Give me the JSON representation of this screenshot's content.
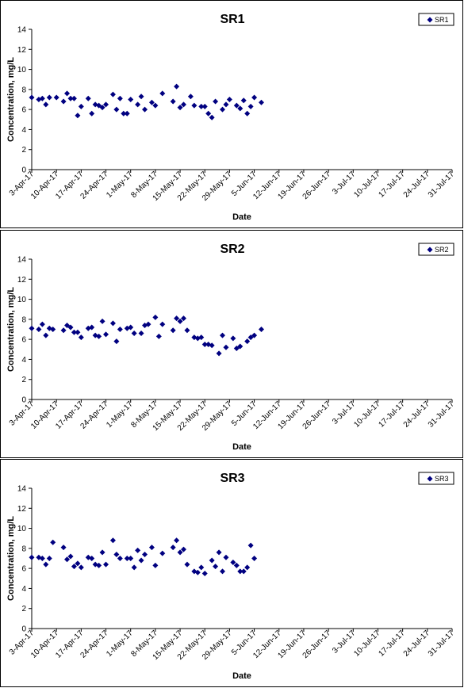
{
  "chart_data": [
    {
      "type": "scatter",
      "title": "SR1",
      "xlabel": "Date",
      "ylabel": "Concentration, mg/L",
      "ylim": [
        0,
        14
      ],
      "yticks": [
        "0",
        "2",
        "4",
        "6",
        "8",
        "10",
        "12",
        "14"
      ],
      "xlim": [
        "2017-04-03",
        "2017-07-31"
      ],
      "xticks": [
        "3-Apr-17",
        "10-Apr-17",
        "17-Apr-17",
        "24-Apr-17",
        "1-May-17",
        "8-May-17",
        "15-May-17",
        "22-May-17",
        "29-May-17",
        "5-Jun-17",
        "12-Jun-17",
        "19-Jun-17",
        "26-Jun-17",
        "3-Jul-17",
        "10-Jul-17",
        "17-Jul-17",
        "24-Jul-17",
        "31-Jul-17"
      ],
      "grid": false,
      "legend_position": "top-right",
      "series": [
        {
          "name": "SR1",
          "color": "#000080",
          "marker": "diamond",
          "points": [
            [
              "2017-04-03",
              7.2
            ],
            [
              "2017-04-05",
              7.0
            ],
            [
              "2017-04-06",
              7.1
            ],
            [
              "2017-04-07",
              6.5
            ],
            [
              "2017-04-08",
              7.2
            ],
            [
              "2017-04-10",
              7.2
            ],
            [
              "2017-04-12",
              6.8
            ],
            [
              "2017-04-13",
              7.6
            ],
            [
              "2017-04-14",
              7.1
            ],
            [
              "2017-04-15",
              7.1
            ],
            [
              "2017-04-16",
              5.4
            ],
            [
              "2017-04-17",
              6.3
            ],
            [
              "2017-04-19",
              7.1
            ],
            [
              "2017-04-20",
              5.6
            ],
            [
              "2017-04-21",
              6.5
            ],
            [
              "2017-04-22",
              6.4
            ],
            [
              "2017-04-23",
              6.2
            ],
            [
              "2017-04-24",
              6.5
            ],
            [
              "2017-04-26",
              7.5
            ],
            [
              "2017-04-27",
              6.0
            ],
            [
              "2017-04-28",
              7.1
            ],
            [
              "2017-04-29",
              5.6
            ],
            [
              "2017-04-30",
              5.6
            ],
            [
              "2017-05-01",
              7.0
            ],
            [
              "2017-05-03",
              6.5
            ],
            [
              "2017-05-04",
              7.3
            ],
            [
              "2017-05-05",
              6.0
            ],
            [
              "2017-05-07",
              6.7
            ],
            [
              "2017-05-08",
              6.4
            ],
            [
              "2017-05-10",
              7.6
            ],
            [
              "2017-05-13",
              6.8
            ],
            [
              "2017-05-14",
              8.3
            ],
            [
              "2017-05-15",
              6.2
            ],
            [
              "2017-05-16",
              6.5
            ],
            [
              "2017-05-18",
              7.3
            ],
            [
              "2017-05-19",
              6.4
            ],
            [
              "2017-05-21",
              6.3
            ],
            [
              "2017-05-22",
              6.3
            ],
            [
              "2017-05-23",
              5.6
            ],
            [
              "2017-05-24",
              5.2
            ],
            [
              "2017-05-25",
              6.8
            ],
            [
              "2017-05-27",
              6.0
            ],
            [
              "2017-05-28",
              6.5
            ],
            [
              "2017-05-29",
              7.0
            ],
            [
              "2017-05-31",
              6.4
            ],
            [
              "2017-06-01",
              6.1
            ],
            [
              "2017-06-02",
              6.9
            ],
            [
              "2017-06-03",
              5.6
            ],
            [
              "2017-06-04",
              6.3
            ],
            [
              "2017-06-05",
              7.2
            ],
            [
              "2017-06-07",
              6.7
            ]
          ]
        }
      ]
    },
    {
      "type": "scatter",
      "title": "SR2",
      "xlabel": "Date",
      "ylabel": "Concentration, mg/L",
      "ylim": [
        0,
        14
      ],
      "yticks": [
        "0",
        "2",
        "4",
        "6",
        "8",
        "10",
        "12",
        "14"
      ],
      "xlim": [
        "2017-04-03",
        "2017-07-31"
      ],
      "xticks": [
        "3-Apr-17",
        "10-Apr-17",
        "17-Apr-17",
        "24-Apr-17",
        "1-May-17",
        "8-May-17",
        "15-May-17",
        "22-May-17",
        "29-May-17",
        "5-Jun-17",
        "12-Jun-17",
        "19-Jun-17",
        "26-Jun-17",
        "3-Jul-17",
        "10-Jul-17",
        "17-Jul-17",
        "24-Jul-17",
        "31-Jul-17"
      ],
      "grid": false,
      "legend_position": "top-right",
      "series": [
        {
          "name": "SR2",
          "color": "#000080",
          "marker": "diamond",
          "points": [
            [
              "2017-04-03",
              7.1
            ],
            [
              "2017-04-05",
              7.0
            ],
            [
              "2017-04-06",
              7.5
            ],
            [
              "2017-04-07",
              6.4
            ],
            [
              "2017-04-08",
              7.1
            ],
            [
              "2017-04-09",
              7.0
            ],
            [
              "2017-04-12",
              6.9
            ],
            [
              "2017-04-13",
              7.4
            ],
            [
              "2017-04-14",
              7.2
            ],
            [
              "2017-04-15",
              6.7
            ],
            [
              "2017-04-16",
              6.7
            ],
            [
              "2017-04-17",
              6.2
            ],
            [
              "2017-04-19",
              7.1
            ],
            [
              "2017-04-20",
              7.2
            ],
            [
              "2017-04-21",
              6.4
            ],
            [
              "2017-04-22",
              6.3
            ],
            [
              "2017-04-23",
              7.8
            ],
            [
              "2017-04-24",
              6.5
            ],
            [
              "2017-04-26",
              7.6
            ],
            [
              "2017-04-27",
              5.8
            ],
            [
              "2017-04-28",
              7.0
            ],
            [
              "2017-04-30",
              7.1
            ],
            [
              "2017-05-01",
              7.2
            ],
            [
              "2017-05-02",
              6.6
            ],
            [
              "2017-05-04",
              6.6
            ],
            [
              "2017-05-05",
              7.4
            ],
            [
              "2017-05-06",
              7.5
            ],
            [
              "2017-05-08",
              8.2
            ],
            [
              "2017-05-09",
              6.3
            ],
            [
              "2017-05-10",
              7.5
            ],
            [
              "2017-05-13",
              6.9
            ],
            [
              "2017-05-14",
              8.1
            ],
            [
              "2017-05-15",
              7.8
            ],
            [
              "2017-05-16",
              8.1
            ],
            [
              "2017-05-17",
              6.9
            ],
            [
              "2017-05-19",
              6.2
            ],
            [
              "2017-05-20",
              6.1
            ],
            [
              "2017-05-21",
              6.2
            ],
            [
              "2017-05-22",
              5.5
            ],
            [
              "2017-05-23",
              5.5
            ],
            [
              "2017-05-24",
              5.4
            ],
            [
              "2017-05-26",
              4.6
            ],
            [
              "2017-05-27",
              6.4
            ],
            [
              "2017-05-28",
              5.2
            ],
            [
              "2017-05-30",
              6.1
            ],
            [
              "2017-05-31",
              5.1
            ],
            [
              "2017-06-01",
              5.3
            ],
            [
              "2017-06-03",
              5.8
            ],
            [
              "2017-06-04",
              6.2
            ],
            [
              "2017-06-05",
              6.4
            ],
            [
              "2017-06-07",
              7.0
            ]
          ]
        }
      ]
    },
    {
      "type": "scatter",
      "title": "SR3",
      "xlabel": "Date",
      "ylabel": "Concentration, mg/L",
      "ylim": [
        0,
        14
      ],
      "yticks": [
        "0",
        "2",
        "4",
        "6",
        "8",
        "10",
        "12",
        "14"
      ],
      "xlim": [
        "2017-04-03",
        "2017-07-31"
      ],
      "xticks": [
        "3-Apr-17",
        "10-Apr-17",
        "17-Apr-17",
        "24-Apr-17",
        "1-May-17",
        "8-May-17",
        "15-May-17",
        "22-May-17",
        "29-May-17",
        "5-Jun-17",
        "12-Jun-17",
        "19-Jun-17",
        "26-Jun-17",
        "3-Jul-17",
        "10-Jul-17",
        "17-Jul-17",
        "24-Jul-17",
        "31-Jul-17"
      ],
      "grid": false,
      "legend_position": "top-right",
      "series": [
        {
          "name": "SR3",
          "color": "#000080",
          "marker": "diamond",
          "points": [
            [
              "2017-04-03",
              7.1
            ],
            [
              "2017-04-05",
              7.1
            ],
            [
              "2017-04-06",
              7.0
            ],
            [
              "2017-04-07",
              6.4
            ],
            [
              "2017-04-08",
              7.0
            ],
            [
              "2017-04-09",
              8.6
            ],
            [
              "2017-04-12",
              8.1
            ],
            [
              "2017-04-13",
              6.9
            ],
            [
              "2017-04-14",
              7.2
            ],
            [
              "2017-04-15",
              6.2
            ],
            [
              "2017-04-16",
              6.5
            ],
            [
              "2017-04-17",
              6.1
            ],
            [
              "2017-04-19",
              7.1
            ],
            [
              "2017-04-20",
              7.0
            ],
            [
              "2017-04-21",
              6.4
            ],
            [
              "2017-04-22",
              6.3
            ],
            [
              "2017-04-23",
              7.6
            ],
            [
              "2017-04-24",
              6.4
            ],
            [
              "2017-04-26",
              8.8
            ],
            [
              "2017-04-27",
              7.4
            ],
            [
              "2017-04-28",
              7.0
            ],
            [
              "2017-04-30",
              7.0
            ],
            [
              "2017-05-01",
              7.0
            ],
            [
              "2017-05-02",
              6.1
            ],
            [
              "2017-05-03",
              7.8
            ],
            [
              "2017-05-04",
              6.8
            ],
            [
              "2017-05-05",
              7.4
            ],
            [
              "2017-05-07",
              8.1
            ],
            [
              "2017-05-08",
              6.3
            ],
            [
              "2017-05-10",
              7.5
            ],
            [
              "2017-05-13",
              8.1
            ],
            [
              "2017-05-14",
              8.8
            ],
            [
              "2017-05-15",
              7.6
            ],
            [
              "2017-05-16",
              7.9
            ],
            [
              "2017-05-17",
              6.4
            ],
            [
              "2017-05-19",
              5.7
            ],
            [
              "2017-05-20",
              5.6
            ],
            [
              "2017-05-21",
              6.1
            ],
            [
              "2017-05-22",
              5.5
            ],
            [
              "2017-05-24",
              6.8
            ],
            [
              "2017-05-25",
              6.2
            ],
            [
              "2017-05-26",
              7.6
            ],
            [
              "2017-05-27",
              5.7
            ],
            [
              "2017-05-28",
              7.1
            ],
            [
              "2017-05-30",
              6.6
            ],
            [
              "2017-05-31",
              6.3
            ],
            [
              "2017-06-01",
              5.7
            ],
            [
              "2017-06-02",
              5.7
            ],
            [
              "2017-06-03",
              6.1
            ],
            [
              "2017-06-04",
              8.3
            ],
            [
              "2017-06-05",
              7.0
            ]
          ]
        }
      ]
    }
  ]
}
